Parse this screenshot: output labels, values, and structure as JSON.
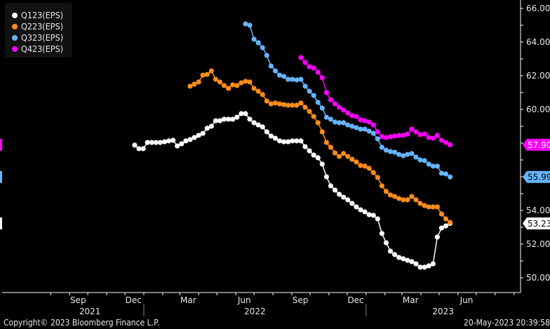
{
  "chart_data": {
    "type": "line",
    "title": "",
    "xlabel": "",
    "ylabel": "",
    "x_type": "date",
    "xlim": [
      "2021-07-08",
      "2023-09-11"
    ],
    "ylim": [
      49.3,
      66.5
    ],
    "y_ticks": [
      50,
      52,
      54,
      56,
      58,
      60,
      62,
      64,
      66
    ],
    "y_tick_labels": [
      "50.00",
      "52.00",
      "54.00",
      "56.00",
      "58.00",
      "60.00",
      "62.00",
      "64.00",
      "66.00"
    ],
    "y_axis_side": "right",
    "grid": false,
    "legend_position": "top-left",
    "x_month_labels": [
      {
        "date": "2021-09-15",
        "label": "Sep"
      },
      {
        "date": "2021-12-15",
        "label": "Dec"
      },
      {
        "date": "2022-03-15",
        "label": "Mar"
      },
      {
        "date": "2022-06-15",
        "label": "Jun"
      },
      {
        "date": "2022-09-15",
        "label": "Sep"
      },
      {
        "date": "2022-12-15",
        "label": "Dec"
      },
      {
        "date": "2023-03-15",
        "label": "Mar"
      },
      {
        "date": "2023-06-15",
        "label": "Jun"
      }
    ],
    "x_year_labels": [
      "2021",
      "2022",
      "2023"
    ],
    "series": [
      {
        "name": "Q123(EPS)",
        "color": "#ffffff",
        "label_text_color": "#000000",
        "start": "2021-12-17",
        "step_days": 7,
        "last_label": "53.23",
        "values": [
          57.88,
          57.67,
          57.67,
          58.04,
          58.04,
          58.04,
          58.04,
          58.08,
          58.13,
          58.17,
          57.83,
          57.96,
          58.13,
          58.21,
          58.33,
          58.46,
          58.58,
          58.88,
          59.0,
          59.33,
          59.33,
          59.42,
          59.42,
          59.42,
          59.54,
          59.75,
          59.75,
          59.42,
          59.21,
          59.08,
          58.96,
          58.67,
          58.42,
          58.29,
          58.13,
          58.08,
          58.08,
          58.13,
          58.13,
          58.13,
          57.79,
          57.54,
          57.29,
          57.13,
          56.75,
          56.0,
          55.46,
          55.21,
          54.96,
          54.79,
          54.63,
          54.42,
          54.21,
          54.04,
          53.92,
          53.75,
          53.71,
          53.5,
          52.63,
          52.08,
          51.58,
          51.38,
          51.21,
          51.13,
          51.04,
          50.96,
          50.83,
          50.63,
          50.63,
          50.71,
          50.83,
          52.42,
          52.96,
          53.08,
          53.23
        ]
      },
      {
        "name": "Q223(EPS)",
        "color": "#ff8c1a",
        "label_text_color": "#000000",
        "start": "2022-03-18",
        "step_days": 7,
        "values": [
          61.38,
          61.5,
          61.63,
          62.04,
          62.08,
          62.29,
          61.79,
          61.63,
          61.42,
          61.25,
          61.46,
          61.42,
          61.58,
          61.67,
          61.63,
          61.25,
          61.08,
          60.88,
          60.5,
          60.33,
          60.38,
          60.33,
          60.29,
          60.25,
          60.25,
          60.25,
          60.38,
          60.13,
          59.88,
          59.58,
          59.21,
          58.67,
          58.04,
          57.75,
          57.42,
          57.21,
          57.38,
          57.21,
          57.04,
          56.88,
          56.67,
          56.63,
          56.5,
          56.25,
          55.96,
          55.46,
          55.13,
          54.92,
          54.83,
          54.71,
          54.63,
          54.63,
          54.83,
          54.63,
          54.42,
          54.29,
          54.21,
          54.21,
          54.21,
          53.79,
          53.5,
          53.29
        ]
      },
      {
        "name": "Q323(EPS)",
        "color": "#66b3ff",
        "label_text_color": "#000000",
        "start": "2022-06-17",
        "step_days": 7,
        "last_label": "55.99",
        "values": [
          65.08,
          65.0,
          64.17,
          63.96,
          63.67,
          63.21,
          62.58,
          62.29,
          62.04,
          61.96,
          61.79,
          61.79,
          61.75,
          61.79,
          61.38,
          61.08,
          60.83,
          60.42,
          60.08,
          59.54,
          59.42,
          59.25,
          59.21,
          59.21,
          59.08,
          59.0,
          58.92,
          58.83,
          58.83,
          58.71,
          58.58,
          58.25,
          57.75,
          57.58,
          57.5,
          57.46,
          57.33,
          57.25,
          57.33,
          57.38,
          57.17,
          57.0,
          56.96,
          56.75,
          56.63,
          56.63,
          56.21,
          56.17,
          55.99
        ]
      },
      {
        "name": "Q423(EPS)",
        "color": "#ff00ff",
        "label_text_color": "#ffffff",
        "start": "2022-09-16",
        "step_days": 7,
        "last_label": "57.90",
        "values": [
          63.08,
          62.79,
          62.54,
          62.46,
          62.21,
          61.88,
          61.0,
          60.58,
          60.33,
          60.13,
          59.96,
          59.79,
          59.63,
          59.58,
          59.38,
          59.33,
          59.25,
          59.08,
          58.67,
          58.38,
          58.33,
          58.38,
          58.42,
          58.46,
          58.46,
          58.54,
          58.83,
          58.67,
          58.5,
          58.54,
          58.33,
          58.29,
          58.46,
          58.17,
          58.04,
          57.9
        ]
      }
    ]
  },
  "footer": {
    "copyright": "Copyright© 2023 Bloomberg Finance L.P.",
    "timestamp": "20-May-2023 20:39:58"
  }
}
